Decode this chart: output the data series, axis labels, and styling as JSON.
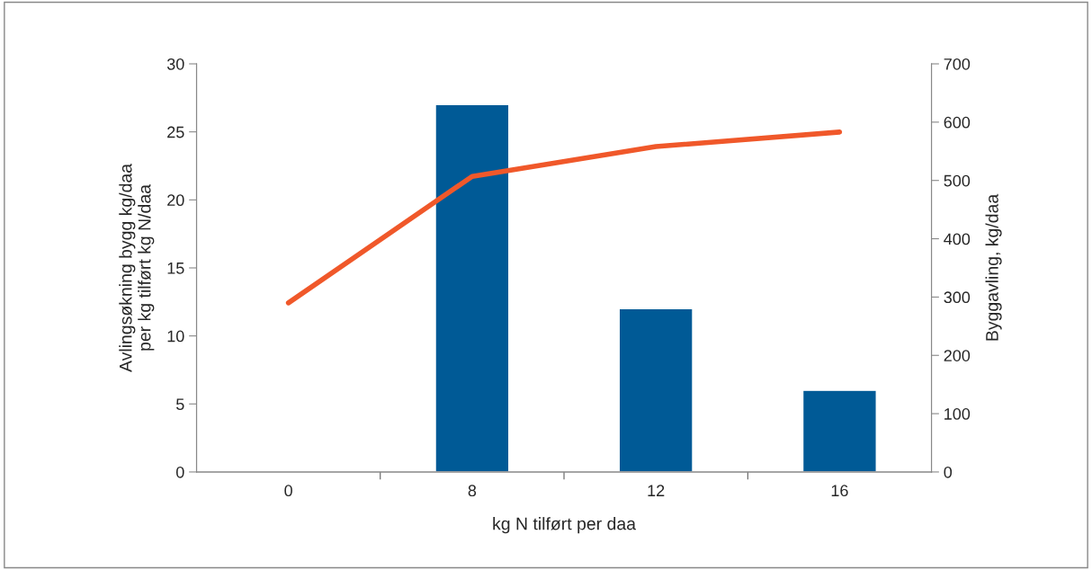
{
  "chart_data": {
    "type": "bar",
    "categories": [
      "0",
      "8",
      "12",
      "16"
    ],
    "xlabel": "kg N tilført per daa",
    "ylabel": "Avlingsøkning bygg kg/daa\nper kg tilført kg N/daa",
    "y2label": "Byggavling, kg/daa",
    "ylim": [
      0,
      30
    ],
    "yticks": [
      0,
      5,
      10,
      15,
      20,
      25,
      30
    ],
    "y2lim": [
      0,
      700
    ],
    "y2ticks": [
      0,
      100,
      200,
      300,
      400,
      500,
      600,
      700
    ],
    "grid": false,
    "legend": false,
    "series": [
      {
        "color": "#005a96",
        "values": [
          null,
          27,
          12,
          6
        ]
      },
      {
        "type": "line",
        "axis": "y2",
        "color": "#f0582a",
        "values": [
          290,
          507,
          558,
          583
        ]
      }
    ]
  }
}
